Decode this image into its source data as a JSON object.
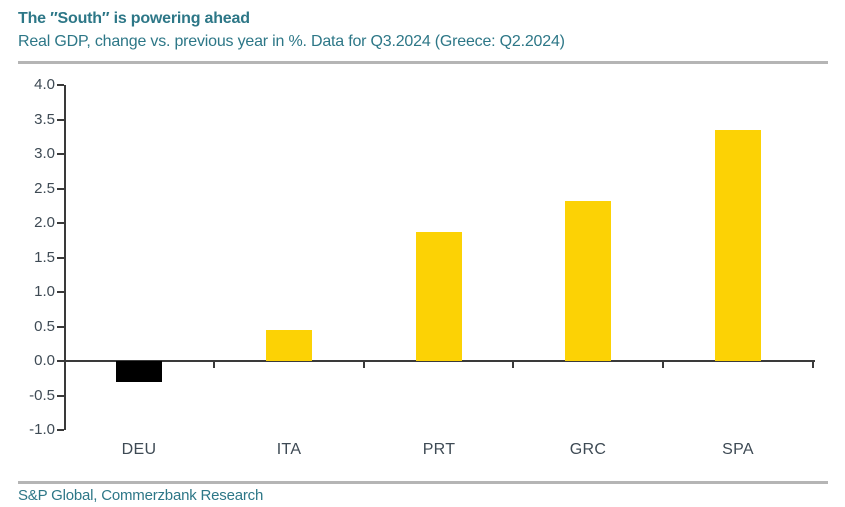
{
  "header": {
    "title": "The ″South″ is powering ahead",
    "subtitle": "Real GDP, change vs. previous year in %. Data for Q3.2024 (Greece: Q2.2024)"
  },
  "chart_data": {
    "type": "bar",
    "categories": [
      "DEU",
      "ITA",
      "PRT",
      "GRC",
      "SPA"
    ],
    "values": [
      -0.3,
      0.45,
      1.87,
      2.32,
      3.35
    ],
    "bar_colors": [
      "#000000",
      "#fcd205",
      "#fcd205",
      "#fcd205",
      "#fcd205"
    ],
    "title": "The ″South″ is powering ahead",
    "subtitle": "Real GDP, change vs. previous year in %. Data for Q3.2024 (Greece: Q2.2024)",
    "xlabel": "",
    "ylabel": "",
    "ylim": [
      -1.0,
      4.0
    ],
    "ytick_step": 0.5,
    "ytick_labels": [
      "4.0",
      "3.5",
      "3.0",
      "2.5",
      "2.0",
      "1.5",
      "1.0",
      "0.5",
      "0.0",
      "-0.5",
      "-1.0"
    ],
    "grid": false,
    "legend": false
  },
  "footer": {
    "source": "S&P Global, Commerzbank Research"
  },
  "colors": {
    "accent_teal": "#2d7787",
    "bar_yellow": "#fcd205",
    "bar_negative": "#000000",
    "axis_line": "#3a3a3a",
    "tick_label": "#3e4a54",
    "divider_gray": "#b5b5b5"
  }
}
